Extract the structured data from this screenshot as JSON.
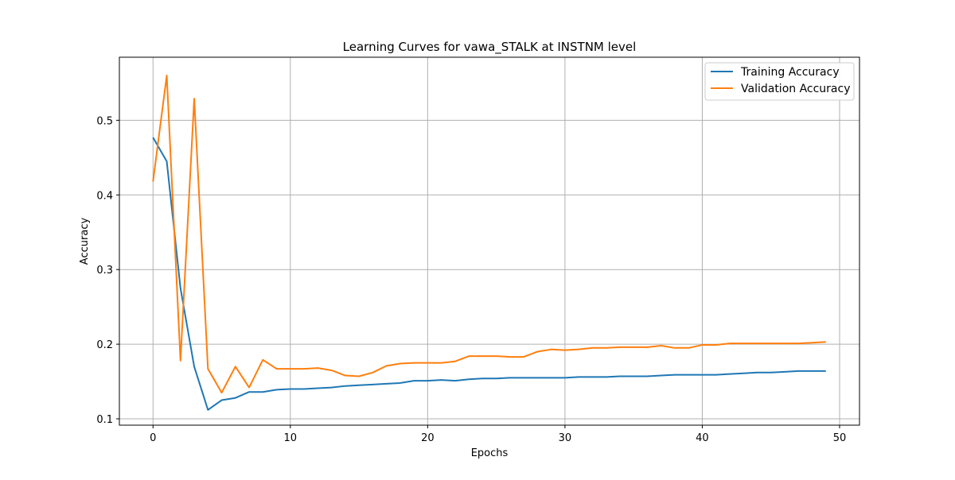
{
  "chart_data": {
    "type": "line",
    "title": "Learning Curves for vawa_STALK at INSTNM level",
    "xlabel": "Epochs",
    "ylabel": "Accuracy",
    "xlim": [
      -2.45,
      51.45
    ],
    "ylim": [
      0.0915,
      0.5845
    ],
    "xticks": [
      0,
      10,
      20,
      30,
      40,
      50
    ],
    "xtick_labels": [
      "0",
      "10",
      "20",
      "30",
      "40",
      "50"
    ],
    "yticks": [
      0.1,
      0.2,
      0.3,
      0.4,
      0.5
    ],
    "ytick_labels": [
      "0.1",
      "0.2",
      "0.3",
      "0.4",
      "0.5"
    ],
    "grid": true,
    "legend_position": "top-right",
    "x": [
      0,
      1,
      2,
      3,
      4,
      5,
      6,
      7,
      8,
      9,
      10,
      11,
      12,
      13,
      14,
      15,
      16,
      17,
      18,
      19,
      20,
      21,
      22,
      23,
      24,
      25,
      26,
      27,
      28,
      29,
      30,
      31,
      32,
      33,
      34,
      35,
      36,
      37,
      38,
      39,
      40,
      41,
      42,
      43,
      44,
      45,
      46,
      47,
      48,
      49
    ],
    "series": [
      {
        "name": "Training Accuracy",
        "color": "#1f77b4",
        "values": [
          0.477,
          0.445,
          0.275,
          0.17,
          0.112,
          0.125,
          0.128,
          0.136,
          0.136,
          0.139,
          0.14,
          0.14,
          0.141,
          0.142,
          0.144,
          0.145,
          0.146,
          0.147,
          0.148,
          0.151,
          0.151,
          0.152,
          0.151,
          0.153,
          0.154,
          0.154,
          0.155,
          0.155,
          0.155,
          0.155,
          0.155,
          0.156,
          0.156,
          0.156,
          0.157,
          0.157,
          0.157,
          0.158,
          0.159,
          0.159,
          0.159,
          0.159,
          0.16,
          0.161,
          0.162,
          0.162,
          0.163,
          0.164,
          0.164,
          0.164
        ]
      },
      {
        "name": "Validation Accuracy",
        "color": "#ff7f0e",
        "values": [
          0.418,
          0.56,
          0.178,
          0.529,
          0.167,
          0.135,
          0.17,
          0.142,
          0.179,
          0.167,
          0.167,
          0.167,
          0.168,
          0.165,
          0.158,
          0.157,
          0.162,
          0.171,
          0.174,
          0.175,
          0.175,
          0.175,
          0.177,
          0.184,
          0.184,
          0.184,
          0.183,
          0.183,
          0.19,
          0.193,
          0.192,
          0.193,
          0.195,
          0.195,
          0.196,
          0.196,
          0.196,
          0.198,
          0.195,
          0.195,
          0.199,
          0.199,
          0.201,
          0.201,
          0.201,
          0.201,
          0.201,
          0.201,
          0.202,
          0.203
        ]
      }
    ]
  }
}
